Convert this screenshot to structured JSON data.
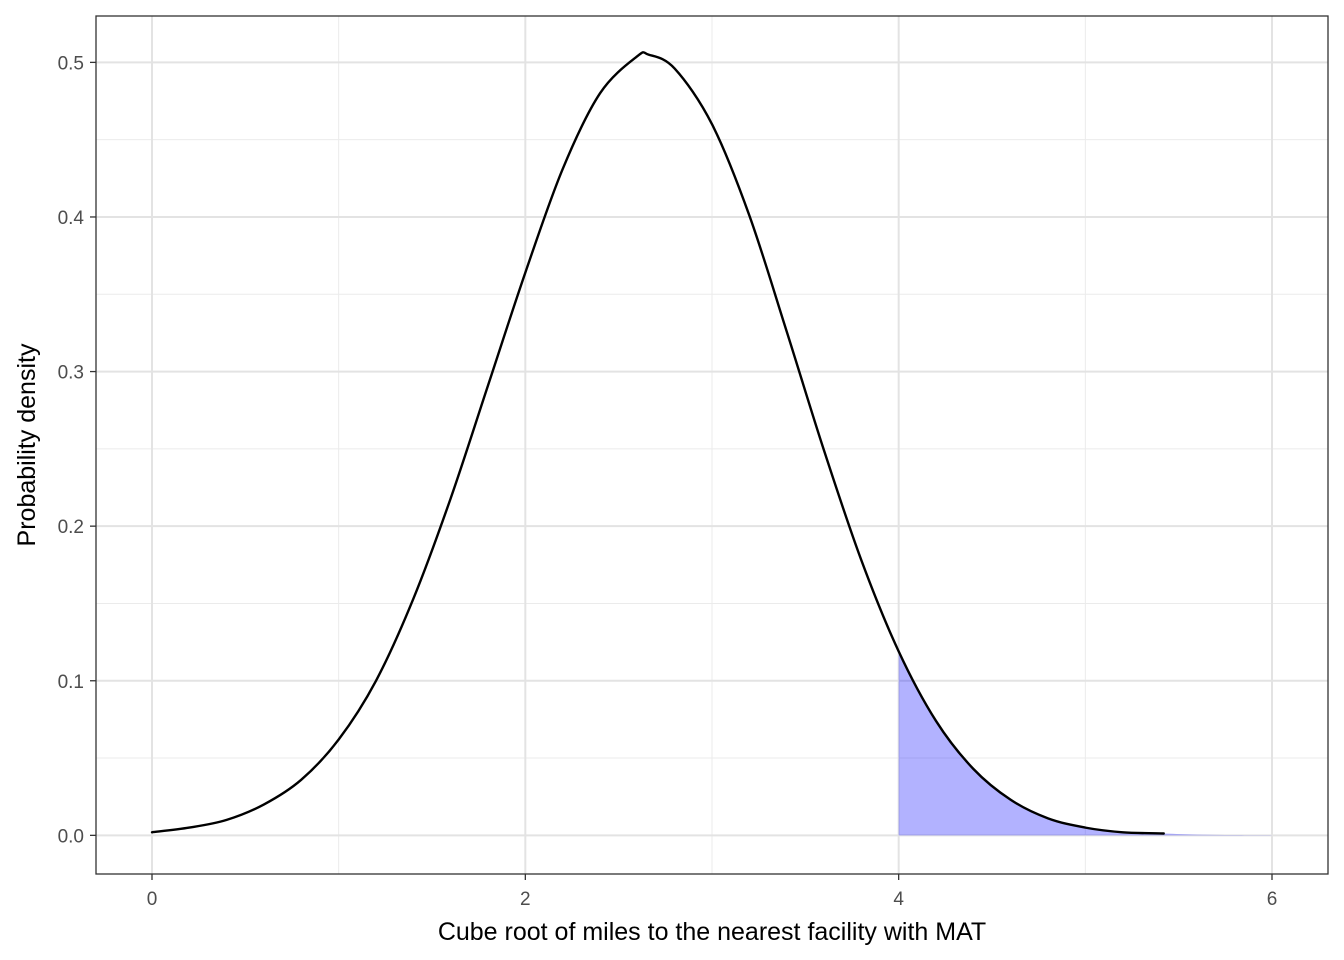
{
  "chart_data": {
    "type": "area",
    "title": "",
    "xlabel": "Cube root of miles to the nearest facility with MAT",
    "ylabel": "Probability density",
    "xlim": [
      -0.3,
      6.3
    ],
    "ylim": [
      -0.025,
      0.53
    ],
    "x_ticks": [
      0,
      2,
      4,
      6
    ],
    "x_tick_labels": [
      "0",
      "2",
      "4",
      "6"
    ],
    "y_ticks": [
      0.0,
      0.1,
      0.2,
      0.3,
      0.4,
      0.5
    ],
    "y_tick_labels": [
      "0.0",
      "0.1",
      "0.2",
      "0.3",
      "0.4",
      "0.5"
    ],
    "grid": true,
    "series": [
      {
        "kind": "line",
        "color": "#000000",
        "x": [
          0.0,
          0.2,
          0.4,
          0.6,
          0.8,
          1.0,
          1.2,
          1.4,
          1.6,
          1.8,
          2.0,
          2.2,
          2.4,
          2.6,
          2.66,
          2.8,
          3.0,
          3.2,
          3.4,
          3.6,
          3.8,
          4.0,
          4.2,
          4.4,
          4.6,
          4.8,
          5.0,
          5.2,
          5.42
        ],
        "y": [
          0.002,
          0.005,
          0.01,
          0.02,
          0.036,
          0.062,
          0.1,
          0.153,
          0.218,
          0.291,
          0.364,
          0.431,
          0.48,
          0.504,
          0.505,
          0.496,
          0.46,
          0.401,
          0.326,
          0.249,
          0.178,
          0.119,
          0.074,
          0.043,
          0.023,
          0.011,
          0.005,
          0.002,
          0.0012
        ]
      },
      {
        "kind": "area",
        "color": "#0000ff",
        "opacity": 0.3,
        "x": [
          4.0,
          4.2,
          4.4,
          4.6,
          4.8,
          5.0,
          5.2,
          5.42,
          5.6,
          5.8,
          6.0
        ],
        "y": [
          0.119,
          0.074,
          0.043,
          0.023,
          0.011,
          0.005,
          0.002,
          0.0012,
          0.0005,
          0.0002,
          0.0001
        ]
      }
    ]
  }
}
